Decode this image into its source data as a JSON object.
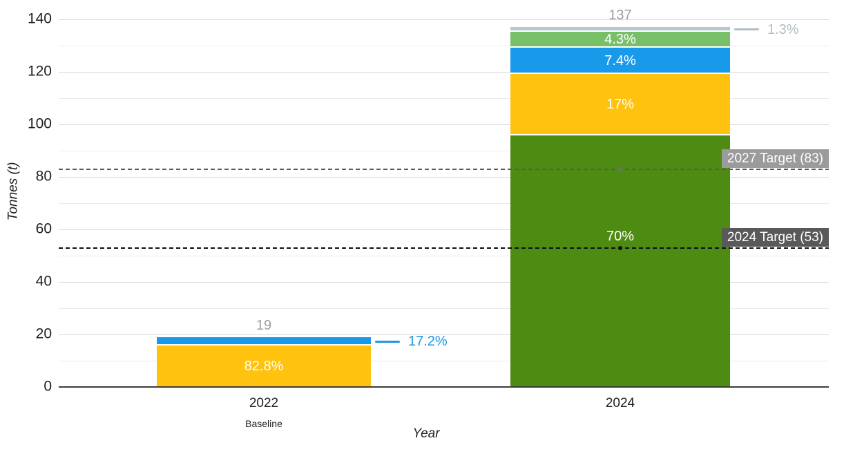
{
  "chart_data": {
    "type": "stacked-bar",
    "title": "",
    "xlabel": "Year",
    "ylabel": "Tonnes (t)",
    "ylim": [
      0,
      140
    ],
    "ytick_major_step": 20,
    "ytick_minor_step": 10,
    "grid": true,
    "legend": "none",
    "colors": {
      "axis": "#3b3b3b",
      "grid_major": "#d9d9d9",
      "grid_minor": "#eaeaea",
      "tick_label": "#1f1f1f",
      "total_label": "#9e9e9e"
    },
    "bars": [
      {
        "category": "2022",
        "sublabel": "Baseline",
        "total": 19,
        "total_label": "19",
        "segments": [
          {
            "name": "yellow-segment",
            "value": 15.7,
            "label": "82.8%",
            "color": "#FFC20E",
            "label_style": "inside"
          },
          {
            "name": "blue-segment",
            "value": 3.3,
            "label": "17.2%",
            "color": "#1899EA",
            "label_style": "callout",
            "label_color": "#1B96E3"
          }
        ]
      },
      {
        "category": "2024",
        "sublabel": "",
        "total": 137,
        "total_label": "137",
        "segments": [
          {
            "name": "dark-green-segment",
            "value": 95.9,
            "label": "70%",
            "color": "#4E8B12",
            "label_style": "inside",
            "label_at_value": 57.5
          },
          {
            "name": "yellow-segment",
            "value": 23.3,
            "label": "17%",
            "color": "#FFC20E",
            "label_style": "inside"
          },
          {
            "name": "blue-segment",
            "value": 10.1,
            "label": "7.4%",
            "color": "#1899EA",
            "label_style": "inside"
          },
          {
            "name": "light-green-segment",
            "value": 5.9,
            "label": "4.3%",
            "color": "#77C067",
            "label_style": "inside"
          },
          {
            "name": "grey-segment",
            "value": 1.8,
            "label": "1.3%",
            "color": "#B5C7D3",
            "label_style": "callout",
            "label_color": "#B2BDC3"
          }
        ]
      }
    ],
    "target_lines": [
      {
        "label": "2027 Target (83)",
        "value": 83,
        "line_color": "#5a5a5a",
        "box_color": "#9b9b9d",
        "text_color": "#ffffff",
        "marker_color": "#707070"
      },
      {
        "label": "2024 Target (53)",
        "value": 53,
        "line_color": "#0d0d0d",
        "box_color": "#59595b",
        "text_color": "#ffffff",
        "marker_color": "#0d0d0d"
      }
    ]
  }
}
